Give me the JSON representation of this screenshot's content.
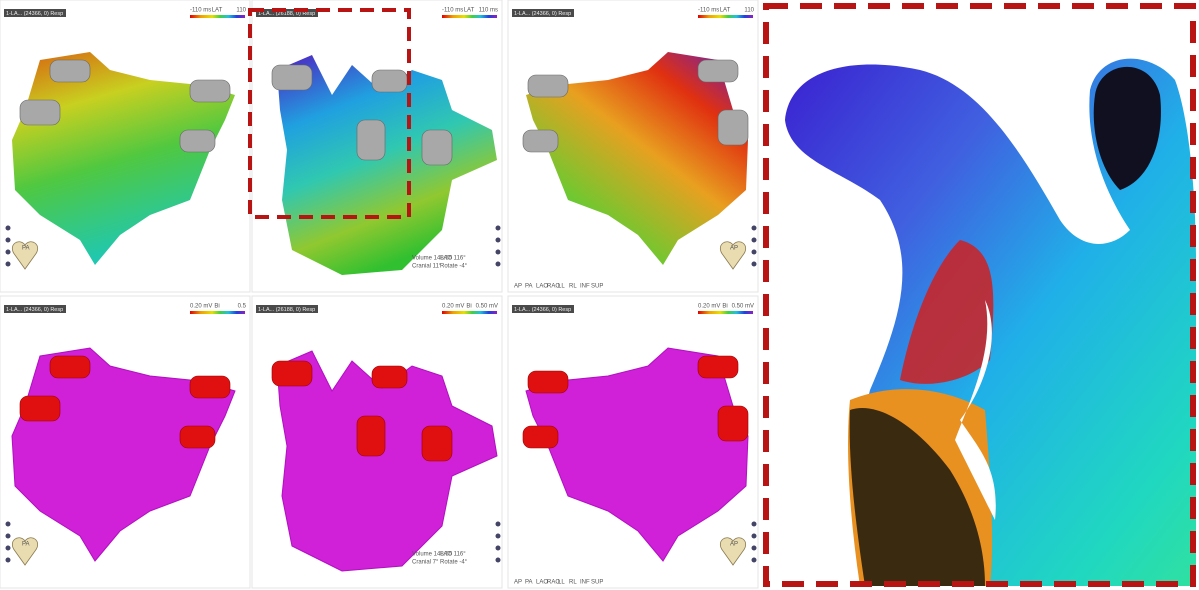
{
  "panels": [
    {
      "header": "1-LA... (24366, 0) Resp",
      "scale_min": "-110 ms",
      "scale_name": "LAT",
      "scale_max": "110",
      "view": "PA"
    },
    {
      "header": "1-LA... (26188, 0) Resp",
      "scale_min": "-110 ms",
      "scale_name": "LAT",
      "scale_max": "110 ms",
      "info": [
        "Volume 148.55",
        "LAO 116°",
        "Cranial 11°",
        "Rotate -4°"
      ]
    },
    {
      "header": "1-LA... (24366, 0) Resp",
      "scale_min": "-110 ms",
      "scale_name": "LAT",
      "scale_max": "110",
      "view": "AP",
      "views": [
        "AP",
        "PA",
        "LAO",
        "RAO",
        "LL",
        "RL",
        "INF",
        "SUP"
      ]
    },
    {
      "header": "1-LA... (24366, 0) Resp",
      "scale_min": "0.20 mV",
      "scale_name": "Bi",
      "scale_max": "0.5",
      "view": "PA"
    },
    {
      "header": "1-LA... (26188, 0) Resp",
      "scale_min": "0.20 mV",
      "scale_name": "Bi",
      "scale_max": "0.50 mV",
      "info": [
        "Volume 148.55",
        "LAO 116°",
        "Cranial 7°",
        "Rotate -4°"
      ]
    },
    {
      "header": "1-LA... (24366, 0) Resp",
      "scale_min": "0.20 mV",
      "scale_name": "Bi",
      "scale_max": "0.50 mV",
      "view": "AP",
      "views": [
        "AP",
        "PA",
        "LAO",
        "RAO",
        "LL",
        "RL",
        "INF",
        "SUP"
      ]
    }
  ]
}
